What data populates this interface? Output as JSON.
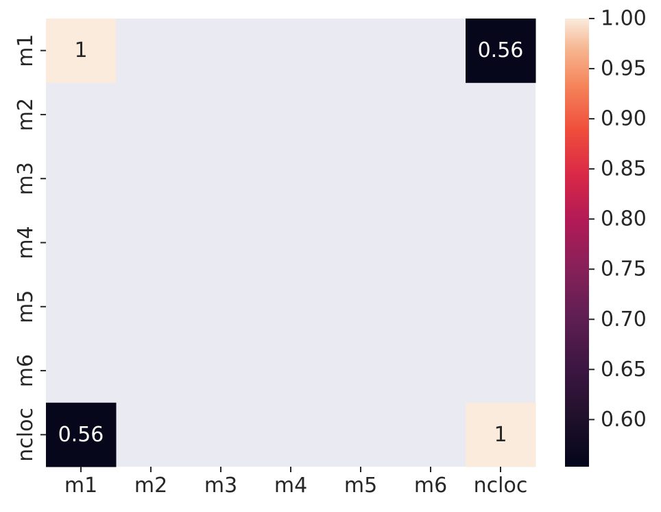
{
  "chart_data": {
    "type": "heatmap",
    "x_labels": [
      "m1",
      "m2",
      "m3",
      "m4",
      "m5",
      "m6",
      "ncloc"
    ],
    "y_labels": [
      "m1",
      "m2",
      "m3",
      "m4",
      "m5",
      "m6",
      "ncloc"
    ],
    "cells": [
      {
        "row": "m1",
        "col": "m1",
        "value": 1,
        "label": "1"
      },
      {
        "row": "m1",
        "col": "ncloc",
        "value": 0.56,
        "label": "0.56"
      },
      {
        "row": "ncloc",
        "col": "m1",
        "value": 0.56,
        "label": "0.56"
      },
      {
        "row": "ncloc",
        "col": "ncloc",
        "value": 1,
        "label": "1"
      }
    ],
    "missing_color": "#eaeaf2",
    "colormap": "rocket",
    "colorbar": {
      "min": 0.553,
      "max": 1.0,
      "ticks": [
        0.6,
        0.65,
        0.7,
        0.75,
        0.8,
        0.85,
        0.9,
        0.95,
        1.0
      ],
      "tick_labels": [
        "0.60",
        "0.65",
        "0.70",
        "0.75",
        "0.80",
        "0.85",
        "0.90",
        "0.95",
        "1.00"
      ],
      "placement": "right"
    },
    "grid": false,
    "title": "",
    "xlabel": "",
    "ylabel": ""
  }
}
